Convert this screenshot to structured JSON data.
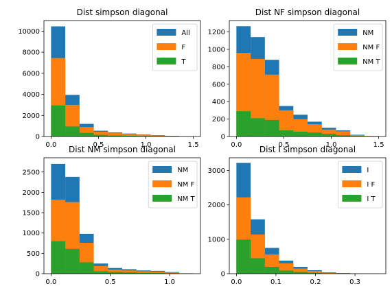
{
  "colors": {
    "blue": "#1f77b4",
    "orange": "#ff7f0e",
    "green": "#2ca02c"
  },
  "chart_data": [
    {
      "type": "bar",
      "title": "Dist simpson diagonal",
      "xlim": [
        -0.075,
        1.575
      ],
      "ylim": [
        0,
        11000
      ],
      "xticks": [
        0.0,
        0.5,
        1.0,
        1.5
      ],
      "xtick_labels": [
        "0.0",
        "0.5",
        "1.0",
        "1.5"
      ],
      "yticks": [
        0,
        2000,
        4000,
        6000,
        8000,
        10000
      ],
      "ytick_labels": [
        "0",
        "2000",
        "4000",
        "6000",
        "8000",
        "10000"
      ],
      "legend": "top-right",
      "bin_edges": [
        0.0,
        0.15,
        0.3,
        0.45,
        0.6,
        0.75,
        0.9,
        1.05,
        1.2,
        1.35,
        1.5
      ],
      "series": [
        {
          "name": "All",
          "color": "#1f77b4",
          "values": [
            10450,
            3950,
            1200,
            550,
            380,
            280,
            200,
            130,
            60,
            20
          ]
        },
        {
          "name": "F",
          "color": "#ff7f0e",
          "values": [
            7450,
            3000,
            900,
            450,
            320,
            240,
            180,
            110,
            50,
            15
          ]
        },
        {
          "name": "T",
          "color": "#2ca02c",
          "values": [
            2950,
            950,
            350,
            150,
            90,
            70,
            50,
            30,
            15,
            5
          ]
        }
      ]
    },
    {
      "type": "bar",
      "title": "Dist NF simpson diagonal",
      "xlim": [
        -0.075,
        1.575
      ],
      "ylim": [
        0,
        1330
      ],
      "xticks": [
        0.0,
        0.5,
        1.0,
        1.5
      ],
      "xtick_labels": [
        "0.0",
        "0.5",
        "1.0",
        "1.5"
      ],
      "yticks": [
        0,
        200,
        400,
        600,
        800,
        1000,
        1200
      ],
      "ytick_labels": [
        "0",
        "200",
        "400",
        "600",
        "800",
        "1000",
        "1200"
      ],
      "legend": "top-right",
      "bin_edges": [
        0.0,
        0.15,
        0.3,
        0.45,
        0.6,
        0.75,
        0.9,
        1.05,
        1.2,
        1.35,
        1.5
      ],
      "series": [
        {
          "name": "NM",
          "color": "#1f77b4",
          "values": [
            1265,
            1140,
            880,
            350,
            250,
            170,
            100,
            70,
            20,
            5
          ]
        },
        {
          "name": "NM F",
          "color": "#ff7f0e",
          "values": [
            960,
            890,
            710,
            300,
            200,
            140,
            80,
            60,
            15,
            5
          ]
        },
        {
          "name": "NM T",
          "color": "#2ca02c",
          "values": [
            290,
            210,
            190,
            70,
            55,
            45,
            30,
            15,
            5,
            2
          ]
        }
      ]
    },
    {
      "type": "bar",
      "title": "Dist NM simpson diagonal",
      "xlim": [
        -0.06,
        1.26
      ],
      "ylim": [
        0,
        2850
      ],
      "xticks": [
        0.0,
        0.5,
        1.0
      ],
      "xtick_labels": [
        "0.0",
        "0.5",
        "1.0"
      ],
      "yticks": [
        0,
        500,
        1000,
        1500,
        2000,
        2500
      ],
      "ytick_labels": [
        "0",
        "500",
        "1000",
        "1500",
        "2000",
        "2500"
      ],
      "legend": "top-right",
      "bin_edges": [
        0.0,
        0.12,
        0.24,
        0.36,
        0.48,
        0.6,
        0.72,
        0.84,
        0.96,
        1.08,
        1.2
      ],
      "series": [
        {
          "name": "NM",
          "color": "#1f77b4",
          "values": [
            2700,
            2380,
            980,
            250,
            140,
            110,
            80,
            70,
            40,
            10
          ]
        },
        {
          "name": "NM F",
          "color": "#ff7f0e",
          "values": [
            1820,
            1760,
            760,
            190,
            100,
            80,
            60,
            50,
            30,
            8
          ]
        },
        {
          "name": "NM T",
          "color": "#2ca02c",
          "values": [
            800,
            610,
            280,
            60,
            40,
            30,
            20,
            15,
            8,
            2
          ]
        }
      ]
    },
    {
      "type": "bar",
      "title": "Dist I simpson diagonal",
      "xlim": [
        -0.018,
        0.378
      ],
      "ylim": [
        0,
        3370
      ],
      "xticks": [
        0.0,
        0.1,
        0.2,
        0.3
      ],
      "xtick_labels": [
        "0.0",
        "0.1",
        "0.2",
        "0.3"
      ],
      "yticks": [
        0,
        1000,
        2000,
        3000
      ],
      "ytick_labels": [
        "0",
        "1000",
        "2000",
        "3000"
      ],
      "legend": "top-right",
      "bin_edges": [
        0.0,
        0.036,
        0.072,
        0.108,
        0.144,
        0.18,
        0.216,
        0.252,
        0.288,
        0.324,
        0.36
      ],
      "series": [
        {
          "name": "I",
          "color": "#1f77b4",
          "values": [
            3220,
            1580,
            750,
            380,
            200,
            100,
            40,
            20,
            8,
            2
          ]
        },
        {
          "name": "I F",
          "color": "#ff7f0e",
          "values": [
            2220,
            1140,
            560,
            300,
            150,
            80,
            30,
            15,
            6,
            2
          ]
        },
        {
          "name": "I T",
          "color": "#2ca02c",
          "values": [
            990,
            450,
            200,
            90,
            50,
            25,
            10,
            5,
            2,
            1
          ]
        }
      ]
    }
  ]
}
